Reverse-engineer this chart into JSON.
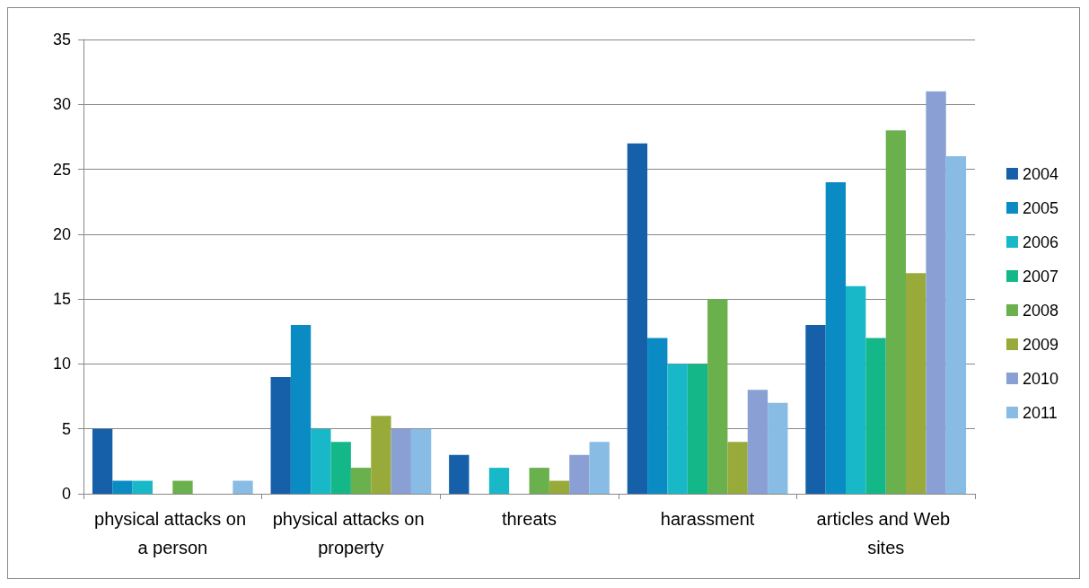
{
  "chart_data": {
    "type": "bar",
    "categories": [
      "physical attacks on a person",
      "physical attacks on property",
      "threats",
      "harassment",
      "articles and Web sites"
    ],
    "series": [
      {
        "name": "2004",
        "color": "#1560a8",
        "values": [
          5,
          9,
          3,
          27,
          13
        ]
      },
      {
        "name": "2005",
        "color": "#0a8bc4",
        "values": [
          1,
          13,
          0,
          12,
          24
        ]
      },
      {
        "name": "2006",
        "color": "#18b8c8",
        "values": [
          1,
          5,
          2,
          10,
          16
        ]
      },
      {
        "name": "2007",
        "color": "#14b888",
        "values": [
          0,
          4,
          0,
          10,
          12
        ]
      },
      {
        "name": "2008",
        "color": "#6ab04c",
        "values": [
          1,
          2,
          2,
          15,
          28
        ]
      },
      {
        "name": "2009",
        "color": "#98aa3a",
        "values": [
          0,
          6,
          1,
          4,
          17
        ]
      },
      {
        "name": "2010",
        "color": "#8aa0d4",
        "values": [
          0,
          5,
          3,
          8,
          31
        ]
      },
      {
        "name": "2011",
        "color": "#88bce4",
        "values": [
          1,
          5,
          4,
          7,
          26
        ]
      }
    ],
    "ylim": [
      0,
      35
    ],
    "yticks": [
      0,
      5,
      10,
      15,
      20,
      25,
      30,
      35
    ],
    "grid": "y",
    "legend": "right"
  }
}
